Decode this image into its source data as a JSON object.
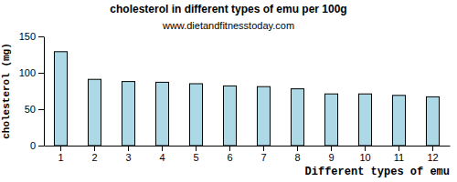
{
  "chart_data": {
    "type": "bar",
    "title": "cholesterol in different types of emu per 100g",
    "subtitle": "www.dietandfitnesstoday.com",
    "x_label": "Different types of emu",
    "y_label": "cholesterol (mg)",
    "categories": [
      "1",
      "2",
      "3",
      "4",
      "5",
      "6",
      "7",
      "8",
      "9",
      "10",
      "11",
      "12"
    ],
    "values": [
      129,
      91,
      88,
      87,
      85,
      82,
      81,
      78,
      71,
      71,
      69,
      67
    ],
    "color": "#add8e6",
    "ylim": [
      0,
      150
    ],
    "yticks": [
      0,
      50,
      100,
      150
    ],
    "grid": false
  }
}
